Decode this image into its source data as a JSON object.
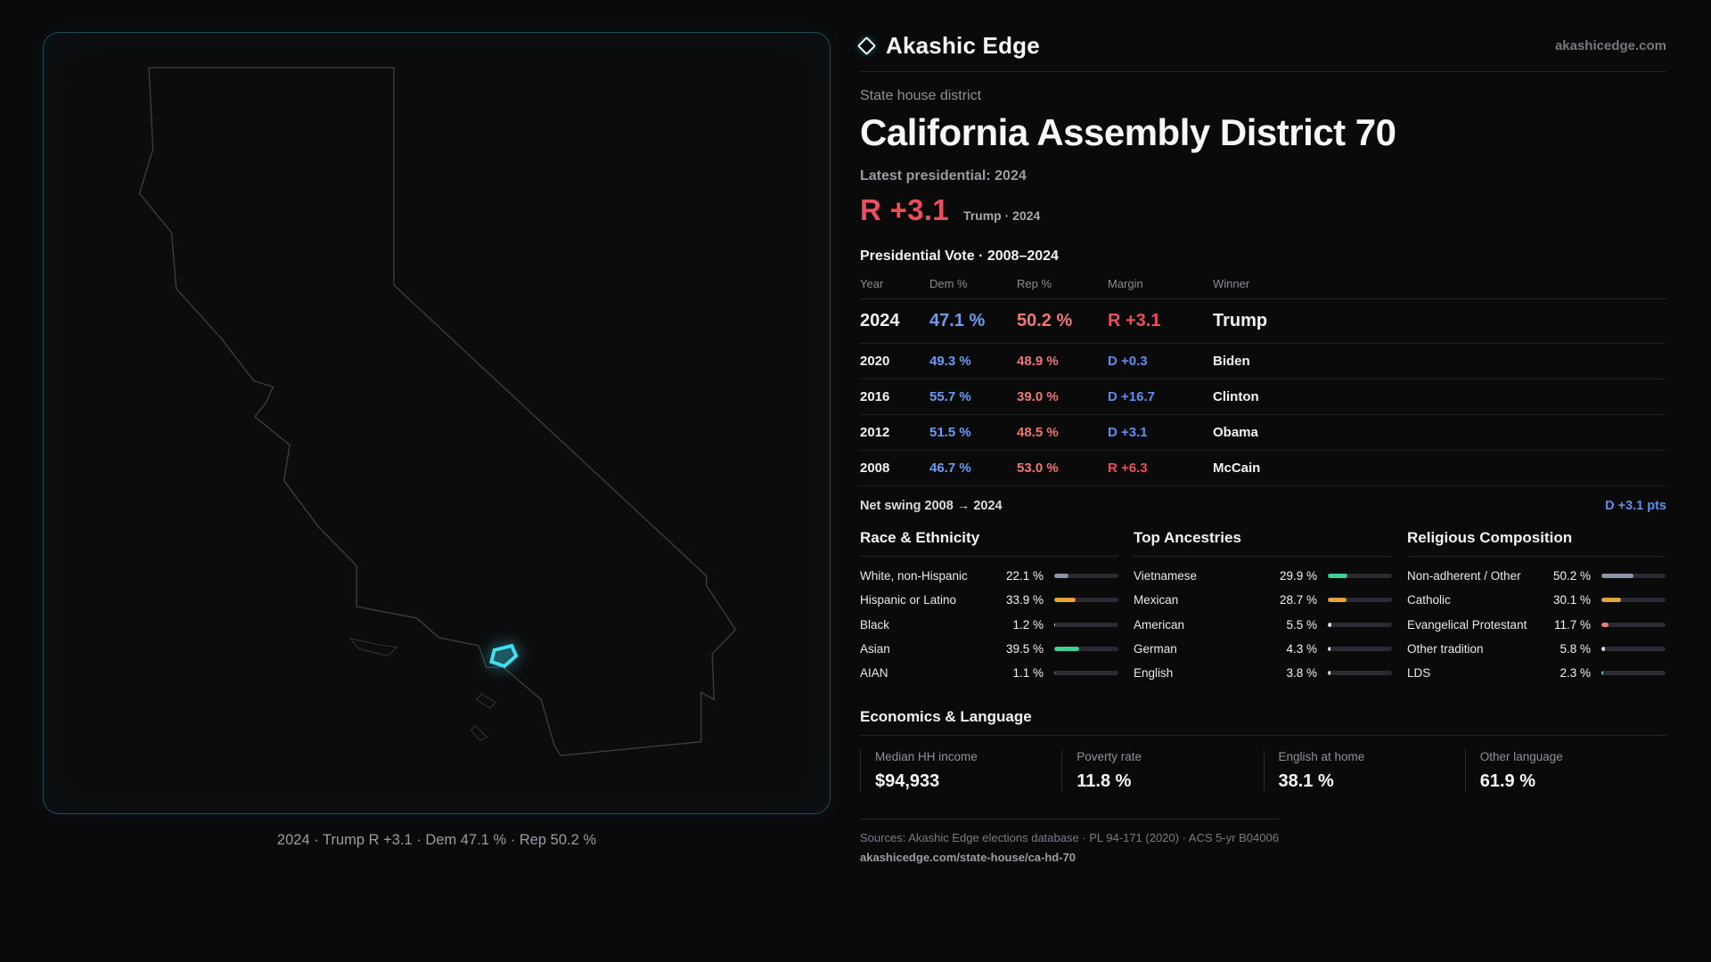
{
  "brand": {
    "name": "Akashic Edge",
    "domain": "akashicedge.com"
  },
  "map": {
    "caption": "2024 · Trump R +3.1 · Dem 47.1 % · Rep 50.2 %"
  },
  "header": {
    "kicker": "State house district",
    "title": "California Assembly District 70",
    "latest_label": "Latest presidential: 2024",
    "headline_margin": "R +3.1",
    "headline_detail": "Trump · 2024"
  },
  "vote_table": {
    "title": "Presidential Vote · 2008–2024",
    "columns": [
      "Year",
      "Dem %",
      "Rep %",
      "Margin",
      "Winner"
    ],
    "rows": [
      {
        "year": "2024",
        "dem": "47.1 %",
        "rep": "50.2 %",
        "margin": "R +3.1",
        "margin_party": "R",
        "winner": "Trump"
      },
      {
        "year": "2020",
        "dem": "49.3 %",
        "rep": "48.9 %",
        "margin": "D +0.3",
        "margin_party": "D",
        "winner": "Biden"
      },
      {
        "year": "2016",
        "dem": "55.7 %",
        "rep": "39.0 %",
        "margin": "D +16.7",
        "margin_party": "D",
        "winner": "Clinton"
      },
      {
        "year": "2012",
        "dem": "51.5 %",
        "rep": "48.5 %",
        "margin": "D +3.1",
        "margin_party": "D",
        "winner": "Obama"
      },
      {
        "year": "2008",
        "dem": "46.7 %",
        "rep": "53.0 %",
        "margin": "R +6.3",
        "margin_party": "R",
        "winner": "McCain"
      }
    ],
    "net_swing_label": "Net swing 2008 → 2024",
    "net_swing_value": "D +3.1 pts"
  },
  "demographics": [
    {
      "title": "Race & Ethnicity",
      "rows": [
        {
          "label": "White, non-Hispanic",
          "value": "22.1 %",
          "pct": 22.1,
          "color": "#8f93a8"
        },
        {
          "label": "Hispanic or Latino",
          "value": "33.9 %",
          "pct": 33.9,
          "color": "#e2a23e"
        },
        {
          "label": "Black",
          "value": "1.2 %",
          "pct": 1.2,
          "color": "#d8d8dd"
        },
        {
          "label": "Asian",
          "value": "39.5 %",
          "pct": 39.5,
          "color": "#3ecf97"
        },
        {
          "label": "AIAN",
          "value": "1.1 %",
          "pct": 1.1,
          "color": "#cf6a45"
        }
      ]
    },
    {
      "title": "Top Ancestries",
      "rows": [
        {
          "label": "Vietnamese",
          "value": "29.9 %",
          "pct": 29.9,
          "color": "#3ecf97"
        },
        {
          "label": "Mexican",
          "value": "28.7 %",
          "pct": 28.7,
          "color": "#e2a23e"
        },
        {
          "label": "American",
          "value": "5.5 %",
          "pct": 5.5,
          "color": "#d8d8dd"
        },
        {
          "label": "German",
          "value": "4.3 %",
          "pct": 4.3,
          "color": "#d8d8dd"
        },
        {
          "label": "English",
          "value": "3.8 %",
          "pct": 3.8,
          "color": "#d8d8dd"
        }
      ]
    },
    {
      "title": "Religious Composition",
      "rows": [
        {
          "label": "Non-adherent / Other",
          "value": "50.2 %",
          "pct": 50.2,
          "color": "#8f93a8"
        },
        {
          "label": "Catholic",
          "value": "30.1 %",
          "pct": 30.1,
          "color": "#e2a23e"
        },
        {
          "label": "Evangelical Protestant",
          "value": "11.7 %",
          "pct": 11.7,
          "color": "#e57a7a"
        },
        {
          "label": "Other tradition",
          "value": "5.8 %",
          "pct": 5.8,
          "color": "#d8d8dd"
        },
        {
          "label": "LDS",
          "value": "2.3 %",
          "pct": 2.3,
          "color": "#3cc4c4"
        }
      ]
    }
  ],
  "economics": {
    "title": "Economics & Language",
    "stats": [
      {
        "label": "Median HH income",
        "value": "$94,933"
      },
      {
        "label": "Poverty rate",
        "value": "11.8 %"
      },
      {
        "label": "English at home",
        "value": "38.1 %"
      },
      {
        "label": "Other language",
        "value": "61.9 %"
      }
    ]
  },
  "footer": {
    "sources": "Sources: Akashic Edge elections database · PL 94-171 (2020) · ACS 5-yr B04006",
    "permalink": "akashicedge.com/state-house/ca-hd-70"
  }
}
